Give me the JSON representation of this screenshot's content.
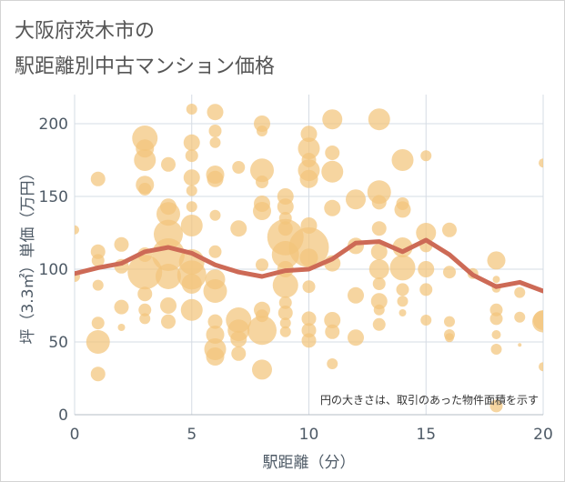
{
  "title_lines": [
    "大阪府茨木市の",
    "駅距離別中古マンション価格"
  ],
  "chart_data": {
    "type": "bubble-scatter-with-line",
    "xlabel": "駅距離（分）",
    "ylabel": "坪（3.3㎡）単価（万円）",
    "xlim": [
      0,
      20
    ],
    "ylim": [
      0,
      220
    ],
    "xticks": [
      0,
      5,
      10,
      15,
      20
    ],
    "yticks": [
      0,
      50,
      100,
      150,
      200
    ],
    "grid": true,
    "annotation": "円の大きさは、取引のあった物件面積を示す",
    "colors": {
      "bubble": "#f3c57b",
      "line": "#cd6a56",
      "grid": "#d6dce4",
      "text": "#4e5a66"
    },
    "line": {
      "x": [
        0,
        1,
        2,
        3,
        4,
        5,
        6,
        7,
        8,
        9,
        10,
        11,
        12,
        13,
        14,
        15,
        16,
        17,
        18,
        19,
        20
      ],
      "y": [
        97,
        101,
        104,
        112,
        115,
        111,
        103,
        98,
        95,
        99,
        100,
        107,
        118,
        119,
        112,
        120,
        110,
        96,
        88,
        91,
        85
      ]
    },
    "bubbles": [
      {
        "x": 0,
        "y": 127,
        "s": 5
      },
      {
        "x": 0,
        "y": 95,
        "s": 6
      },
      {
        "x": 1,
        "y": 162,
        "s": 8
      },
      {
        "x": 1,
        "y": 112,
        "s": 8
      },
      {
        "x": 1,
        "y": 106,
        "s": 7
      },
      {
        "x": 1,
        "y": 89,
        "s": 6
      },
      {
        "x": 1,
        "y": 63,
        "s": 7
      },
      {
        "x": 1,
        "y": 50,
        "s": 13
      },
      {
        "x": 1,
        "y": 28,
        "s": 8
      },
      {
        "x": 2,
        "y": 117,
        "s": 8
      },
      {
        "x": 2,
        "y": 102,
        "s": 8
      },
      {
        "x": 2,
        "y": 74,
        "s": 8
      },
      {
        "x": 2,
        "y": 60,
        "s": 4
      },
      {
        "x": 3,
        "y": 190,
        "s": 14
      },
      {
        "x": 3,
        "y": 183,
        "s": 10
      },
      {
        "x": 3,
        "y": 175,
        "s": 12
      },
      {
        "x": 3,
        "y": 158,
        "s": 10
      },
      {
        "x": 3,
        "y": 155,
        "s": 7
      },
      {
        "x": 3,
        "y": 110,
        "s": 8
      },
      {
        "x": 3,
        "y": 98,
        "s": 19
      },
      {
        "x": 3,
        "y": 83,
        "s": 8
      },
      {
        "x": 3,
        "y": 72,
        "s": 7
      },
      {
        "x": 3,
        "y": 66,
        "s": 6
      },
      {
        "x": 4,
        "y": 172,
        "s": 8
      },
      {
        "x": 4,
        "y": 143,
        "s": 9
      },
      {
        "x": 4,
        "y": 138,
        "s": 13
      },
      {
        "x": 4,
        "y": 124,
        "s": 16
      },
      {
        "x": 4,
        "y": 110,
        "s": 18
      },
      {
        "x": 4,
        "y": 95,
        "s": 14
      },
      {
        "x": 4,
        "y": 75,
        "s": 9
      },
      {
        "x": 4,
        "y": 64,
        "s": 8
      },
      {
        "x": 5,
        "y": 210,
        "s": 6
      },
      {
        "x": 5,
        "y": 187,
        "s": 9
      },
      {
        "x": 5,
        "y": 178,
        "s": 7
      },
      {
        "x": 5,
        "y": 163,
        "s": 9
      },
      {
        "x": 5,
        "y": 154,
        "s": 6
      },
      {
        "x": 5,
        "y": 143,
        "s": 6
      },
      {
        "x": 5,
        "y": 130,
        "s": 12
      },
      {
        "x": 5,
        "y": 105,
        "s": 14
      },
      {
        "x": 5,
        "y": 96,
        "s": 16
      },
      {
        "x": 5,
        "y": 90,
        "s": 11
      },
      {
        "x": 5,
        "y": 72,
        "s": 12
      },
      {
        "x": 6,
        "y": 208,
        "s": 9
      },
      {
        "x": 6,
        "y": 195,
        "s": 7
      },
      {
        "x": 6,
        "y": 187,
        "s": 6
      },
      {
        "x": 6,
        "y": 165,
        "s": 10
      },
      {
        "x": 6,
        "y": 162,
        "s": 9
      },
      {
        "x": 6,
        "y": 137,
        "s": 6
      },
      {
        "x": 6,
        "y": 112,
        "s": 7
      },
      {
        "x": 6,
        "y": 93,
        "s": 11
      },
      {
        "x": 6,
        "y": 85,
        "s": 13
      },
      {
        "x": 6,
        "y": 64,
        "s": 8
      },
      {
        "x": 6,
        "y": 55,
        "s": 10
      },
      {
        "x": 6,
        "y": 45,
        "s": 12
      },
      {
        "x": 6,
        "y": 40,
        "s": 10
      },
      {
        "x": 7,
        "y": 170,
        "s": 7
      },
      {
        "x": 7,
        "y": 128,
        "s": 9
      },
      {
        "x": 7,
        "y": 65,
        "s": 14
      },
      {
        "x": 7,
        "y": 58,
        "s": 12
      },
      {
        "x": 7,
        "y": 52,
        "s": 9
      },
      {
        "x": 7,
        "y": 42,
        "s": 8
      },
      {
        "x": 8,
        "y": 200,
        "s": 9
      },
      {
        "x": 8,
        "y": 195,
        "s": 6
      },
      {
        "x": 8,
        "y": 168,
        "s": 13
      },
      {
        "x": 8,
        "y": 160,
        "s": 7
      },
      {
        "x": 8,
        "y": 145,
        "s": 9
      },
      {
        "x": 8,
        "y": 140,
        "s": 10
      },
      {
        "x": 8,
        "y": 103,
        "s": 7
      },
      {
        "x": 8,
        "y": 72,
        "s": 9
      },
      {
        "x": 8,
        "y": 68,
        "s": 7
      },
      {
        "x": 8,
        "y": 58,
        "s": 16
      },
      {
        "x": 8,
        "y": 31,
        "s": 11
      },
      {
        "x": 9,
        "y": 150,
        "s": 9
      },
      {
        "x": 9,
        "y": 143,
        "s": 9
      },
      {
        "x": 9,
        "y": 135,
        "s": 7
      },
      {
        "x": 9,
        "y": 128,
        "s": 8
      },
      {
        "x": 9,
        "y": 122,
        "s": 20
      },
      {
        "x": 9,
        "y": 110,
        "s": 15
      },
      {
        "x": 9,
        "y": 100,
        "s": 9
      },
      {
        "x": 9,
        "y": 89,
        "s": 14
      },
      {
        "x": 9,
        "y": 77,
        "s": 7
      },
      {
        "x": 9,
        "y": 70,
        "s": 8
      },
      {
        "x": 9,
        "y": 63,
        "s": 6
      },
      {
        "x": 9,
        "y": 57,
        "s": 6
      },
      {
        "x": 10,
        "y": 193,
        "s": 9
      },
      {
        "x": 10,
        "y": 183,
        "s": 12
      },
      {
        "x": 10,
        "y": 175,
        "s": 8
      },
      {
        "x": 10,
        "y": 168,
        "s": 12
      },
      {
        "x": 10,
        "y": 162,
        "s": 10
      },
      {
        "x": 10,
        "y": 130,
        "s": 9
      },
      {
        "x": 10,
        "y": 115,
        "s": 22
      },
      {
        "x": 10,
        "y": 108,
        "s": 10
      },
      {
        "x": 10,
        "y": 88,
        "s": 7
      },
      {
        "x": 10,
        "y": 66,
        "s": 8
      },
      {
        "x": 10,
        "y": 58,
        "s": 8
      },
      {
        "x": 10,
        "y": 51,
        "s": 8
      },
      {
        "x": 11,
        "y": 203,
        "s": 11
      },
      {
        "x": 11,
        "y": 180,
        "s": 8
      },
      {
        "x": 11,
        "y": 167,
        "s": 12
      },
      {
        "x": 11,
        "y": 142,
        "s": 9
      },
      {
        "x": 11,
        "y": 104,
        "s": 9
      },
      {
        "x": 11,
        "y": 65,
        "s": 9
      },
      {
        "x": 11,
        "y": 57,
        "s": 8
      },
      {
        "x": 11,
        "y": 35,
        "s": 6
      },
      {
        "x": 12,
        "y": 148,
        "s": 11
      },
      {
        "x": 12,
        "y": 116,
        "s": 9
      },
      {
        "x": 12,
        "y": 82,
        "s": 9
      },
      {
        "x": 12,
        "y": 53,
        "s": 9
      },
      {
        "x": 13,
        "y": 203,
        "s": 12
      },
      {
        "x": 13,
        "y": 153,
        "s": 13
      },
      {
        "x": 13,
        "y": 146,
        "s": 8
      },
      {
        "x": 13,
        "y": 128,
        "s": 8
      },
      {
        "x": 13,
        "y": 112,
        "s": 9
      },
      {
        "x": 13,
        "y": 100,
        "s": 11
      },
      {
        "x": 13,
        "y": 90,
        "s": 7
      },
      {
        "x": 13,
        "y": 78,
        "s": 9
      },
      {
        "x": 13,
        "y": 72,
        "s": 6
      },
      {
        "x": 13,
        "y": 62,
        "s": 7
      },
      {
        "x": 14,
        "y": 175,
        "s": 12
      },
      {
        "x": 14,
        "y": 145,
        "s": 7
      },
      {
        "x": 14,
        "y": 141,
        "s": 9
      },
      {
        "x": 14,
        "y": 115,
        "s": 11
      },
      {
        "x": 14,
        "y": 101,
        "s": 14
      },
      {
        "x": 14,
        "y": 86,
        "s": 7
      },
      {
        "x": 14,
        "y": 78,
        "s": 6
      },
      {
        "x": 14,
        "y": 70,
        "s": 4
      },
      {
        "x": 15,
        "y": 178,
        "s": 6
      },
      {
        "x": 15,
        "y": 125,
        "s": 11
      },
      {
        "x": 15,
        "y": 116,
        "s": 7
      },
      {
        "x": 15,
        "y": 100,
        "s": 9
      },
      {
        "x": 15,
        "y": 86,
        "s": 7
      },
      {
        "x": 15,
        "y": 65,
        "s": 6
      },
      {
        "x": 16,
        "y": 127,
        "s": 8
      },
      {
        "x": 16,
        "y": 98,
        "s": 7
      },
      {
        "x": 16,
        "y": 64,
        "s": 6
      },
      {
        "x": 16,
        "y": 55,
        "s": 6
      },
      {
        "x": 16,
        "y": 53,
        "s": 5
      },
      {
        "x": 17,
        "y": 97,
        "s": 6
      },
      {
        "x": 18,
        "y": 106,
        "s": 10
      },
      {
        "x": 18,
        "y": 93,
        "s": 4
      },
      {
        "x": 18,
        "y": 87,
        "s": 5
      },
      {
        "x": 18,
        "y": 72,
        "s": 7
      },
      {
        "x": 18,
        "y": 66,
        "s": 7
      },
      {
        "x": 18,
        "y": 55,
        "s": 5
      },
      {
        "x": 18,
        "y": 45,
        "s": 6
      },
      {
        "x": 18,
        "y": 6,
        "s": 7
      },
      {
        "x": 19,
        "y": 84,
        "s": 6
      },
      {
        "x": 19,
        "y": 67,
        "s": 6
      },
      {
        "x": 19,
        "y": 48,
        "s": 2
      },
      {
        "x": 20,
        "y": 173,
        "s": 5
      },
      {
        "x": 20,
        "y": 65,
        "s": 11
      },
      {
        "x": 20,
        "y": 64,
        "s": 12
      },
      {
        "x": 20,
        "y": 33,
        "s": 5
      }
    ]
  }
}
